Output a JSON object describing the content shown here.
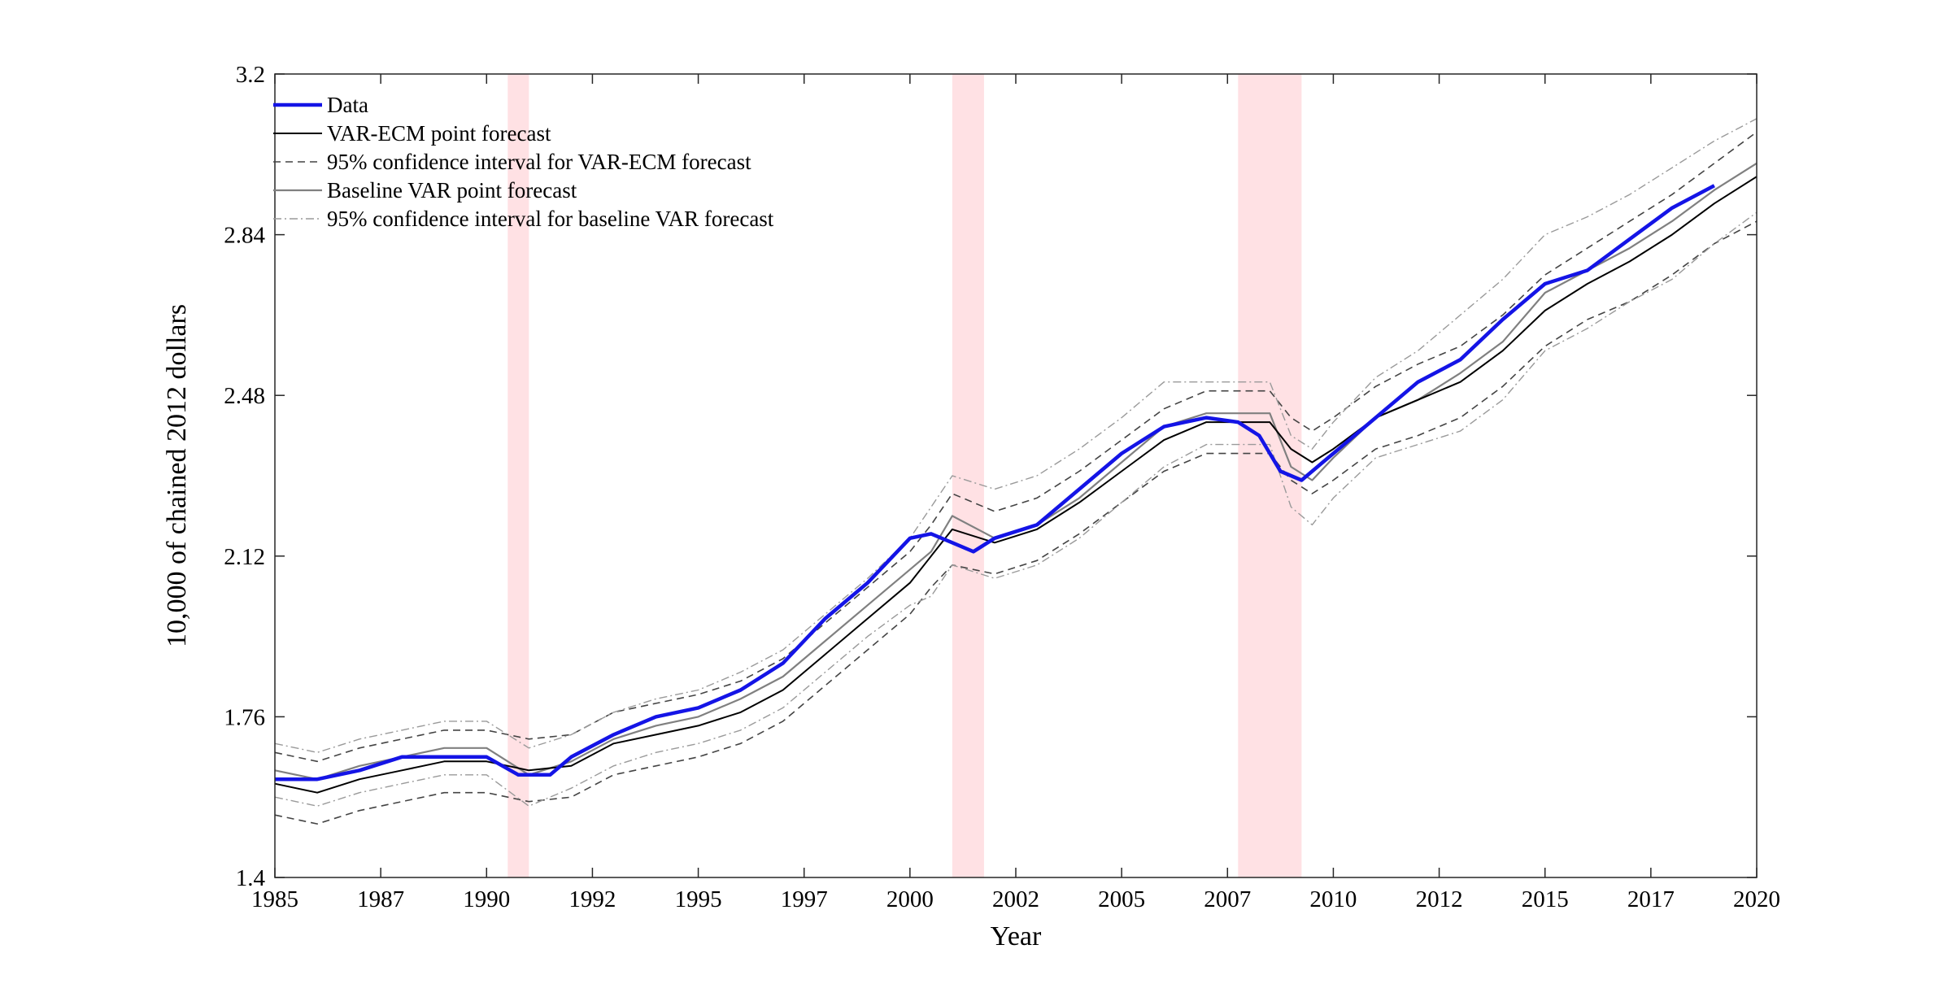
{
  "chart_data": {
    "type": "line",
    "title": "",
    "xlabel": "Year",
    "ylabel": "10,000 of chained 2012 dollars",
    "xlim": [
      1985,
      2020
    ],
    "ylim": [
      1.4,
      3.2
    ],
    "xticks": [
      "1985",
      "1987",
      "1990",
      "1992",
      "1995",
      "1997",
      "2000",
      "2002",
      "2005",
      "2007",
      "2010",
      "2012",
      "2015",
      "2017",
      "2020"
    ],
    "yticks": [
      "1.4",
      "1.76",
      "2.12",
      "2.48",
      "2.84",
      "3.2"
    ],
    "grid": false,
    "legend_position": "top-left",
    "recessions": [
      [
        1990.5,
        1991.0
      ],
      [
        2001.0,
        2001.75
      ],
      [
        2007.75,
        2009.25
      ]
    ],
    "colors": {
      "data": "#1414e6",
      "var_ecm": "#000000",
      "var_ecm_ci": "#444444",
      "baseline": "#808080",
      "baseline_ci": "#9a9a9a",
      "recession": "#ffe1e4"
    },
    "series": [
      {
        "name": "Data",
        "x": [
          1985,
          1986,
          1987,
          1988,
          1989,
          1990,
          1990.75,
          1991.5,
          1992,
          1993,
          1994,
          1995,
          1996,
          1997,
          1998,
          1999,
          2000,
          2000.5,
          2001,
          2001.5,
          2002,
          2003,
          2004,
          2005,
          2006,
          2007,
          2007.75,
          2008.25,
          2008.75,
          2009.25,
          2009.75,
          2010,
          2011,
          2012,
          2013,
          2014,
          2015,
          2016,
          2017,
          2018,
          2019
        ],
        "values": [
          1.62,
          1.62,
          1.64,
          1.67,
          1.67,
          1.67,
          1.63,
          1.63,
          1.67,
          1.72,
          1.76,
          1.78,
          1.82,
          1.88,
          1.98,
          2.06,
          2.16,
          2.17,
          2.15,
          2.13,
          2.16,
          2.19,
          2.27,
          2.35,
          2.41,
          2.43,
          2.42,
          2.39,
          2.31,
          2.29,
          2.33,
          2.35,
          2.43,
          2.51,
          2.56,
          2.65,
          2.73,
          2.76,
          2.83,
          2.9,
          2.95
        ]
      },
      {
        "name": "VAR-ECM point forecast",
        "x": [
          1985,
          1986,
          1987,
          1988,
          1989,
          1990,
          1991,
          1992,
          1993,
          1994,
          1995,
          1996,
          1997,
          1998,
          1999,
          2000,
          2000.5,
          2001,
          2002,
          2003,
          2004,
          2005,
          2006,
          2007,
          2008,
          2008.5,
          2009,
          2009.5,
          2010,
          2011,
          2012,
          2013,
          2014,
          2015,
          2016,
          2017,
          2018,
          2019,
          2020
        ],
        "values": [
          1.61,
          1.59,
          1.62,
          1.64,
          1.66,
          1.66,
          1.64,
          1.65,
          1.7,
          1.72,
          1.74,
          1.77,
          1.82,
          1.9,
          1.98,
          2.06,
          2.12,
          2.18,
          2.15,
          2.18,
          2.24,
          2.31,
          2.38,
          2.42,
          2.42,
          2.42,
          2.36,
          2.33,
          2.36,
          2.43,
          2.47,
          2.51,
          2.58,
          2.67,
          2.73,
          2.78,
          2.84,
          2.91,
          2.97
        ]
      },
      {
        "name": "95% confidence interval for VAR-ECM forecast",
        "x": [
          1985,
          1986,
          1987,
          1988,
          1989,
          1990,
          1991,
          1992,
          1993,
          1994,
          1995,
          1996,
          1997,
          1998,
          1999,
          2000,
          2000.5,
          2001,
          2002,
          2003,
          2004,
          2005,
          2006,
          2007,
          2008,
          2008.5,
          2009,
          2009.5,
          2010,
          2011,
          2012,
          2013,
          2014,
          2015,
          2016,
          2017,
          2018,
          2019,
          2020
        ],
        "values": [
          1.68,
          1.66,
          1.69,
          1.71,
          1.73,
          1.73,
          1.71,
          1.72,
          1.77,
          1.79,
          1.81,
          1.84,
          1.89,
          1.97,
          2.05,
          2.13,
          2.19,
          2.26,
          2.22,
          2.25,
          2.31,
          2.38,
          2.45,
          2.49,
          2.49,
          2.49,
          2.43,
          2.4,
          2.43,
          2.5,
          2.55,
          2.59,
          2.66,
          2.75,
          2.81,
          2.87,
          2.93,
          3.0,
          3.07
        ]
      },
      {
        "name": "95% confidence interval for VAR-ECM forecast",
        "x": [
          1985,
          1986,
          1987,
          1988,
          1989,
          1990,
          1991,
          1992,
          1993,
          1994,
          1995,
          1996,
          1997,
          1998,
          1999,
          2000,
          2000.5,
          2001,
          2002,
          2003,
          2004,
          2005,
          2006,
          2007,
          2008,
          2008.5,
          2009,
          2009.5,
          2010,
          2011,
          2012,
          2013,
          2014,
          2015,
          2016,
          2017,
          2018,
          2019,
          2020
        ],
        "values": [
          1.54,
          1.52,
          1.55,
          1.57,
          1.59,
          1.59,
          1.57,
          1.58,
          1.63,
          1.65,
          1.67,
          1.7,
          1.75,
          1.83,
          1.91,
          1.99,
          2.05,
          2.1,
          2.08,
          2.11,
          2.17,
          2.24,
          2.31,
          2.35,
          2.35,
          2.35,
          2.29,
          2.26,
          2.29,
          2.36,
          2.39,
          2.43,
          2.5,
          2.59,
          2.65,
          2.69,
          2.75,
          2.82,
          2.87
        ]
      },
      {
        "name": "Baseline VAR point forecast",
        "x": [
          1985,
          1986,
          1987,
          1988,
          1989,
          1990,
          1991,
          1992,
          1993,
          1994,
          1995,
          1996,
          1997,
          1998,
          1999,
          2000,
          2000.5,
          2001,
          2002,
          2003,
          2004,
          2005,
          2006,
          2007,
          2008,
          2008.5,
          2009,
          2009.5,
          2010,
          2011,
          2012,
          2013,
          2014,
          2015,
          2016,
          2017,
          2018,
          2019,
          2020
        ],
        "values": [
          1.64,
          1.62,
          1.65,
          1.67,
          1.69,
          1.69,
          1.63,
          1.66,
          1.71,
          1.74,
          1.76,
          1.8,
          1.85,
          1.93,
          2.01,
          2.09,
          2.13,
          2.21,
          2.16,
          2.19,
          2.25,
          2.33,
          2.41,
          2.44,
          2.44,
          2.44,
          2.32,
          2.29,
          2.34,
          2.43,
          2.47,
          2.53,
          2.6,
          2.71,
          2.76,
          2.81,
          2.87,
          2.94,
          3.0
        ]
      },
      {
        "name": "95% confidence interval for baseline VAR forecast",
        "x": [
          1985,
          1986,
          1987,
          1988,
          1989,
          1990,
          1991,
          1992,
          1993,
          1994,
          1995,
          1996,
          1997,
          1998,
          1999,
          2000,
          2000.5,
          2001,
          2002,
          2003,
          2004,
          2005,
          2006,
          2007,
          2008,
          2008.5,
          2009,
          2009.5,
          2010,
          2011,
          2012,
          2013,
          2014,
          2015,
          2016,
          2017,
          2018,
          2019,
          2020
        ],
        "values": [
          1.7,
          1.68,
          1.71,
          1.73,
          1.75,
          1.75,
          1.69,
          1.72,
          1.77,
          1.8,
          1.82,
          1.86,
          1.91,
          1.99,
          2.07,
          2.16,
          2.23,
          2.3,
          2.27,
          2.3,
          2.36,
          2.43,
          2.51,
          2.51,
          2.51,
          2.51,
          2.39,
          2.36,
          2.42,
          2.52,
          2.58,
          2.66,
          2.74,
          2.84,
          2.88,
          2.93,
          2.99,
          3.05,
          3.1
        ]
      },
      {
        "name": "95% confidence interval for baseline VAR forecast",
        "x": [
          1985,
          1986,
          1987,
          1988,
          1989,
          1990,
          1991,
          1992,
          1993,
          1994,
          1995,
          1996,
          1997,
          1998,
          1999,
          2000,
          2000.5,
          2001,
          2002,
          2003,
          2004,
          2005,
          2006,
          2007,
          2008,
          2008.5,
          2009,
          2009.5,
          2010,
          2011,
          2012,
          2013,
          2014,
          2015,
          2016,
          2017,
          2018,
          2019,
          2020
        ],
        "values": [
          1.58,
          1.56,
          1.59,
          1.61,
          1.63,
          1.63,
          1.56,
          1.6,
          1.65,
          1.68,
          1.7,
          1.73,
          1.78,
          1.86,
          1.94,
          2.01,
          2.03,
          2.1,
          2.07,
          2.1,
          2.16,
          2.24,
          2.32,
          2.37,
          2.37,
          2.37,
          2.23,
          2.19,
          2.25,
          2.34,
          2.37,
          2.4,
          2.47,
          2.58,
          2.63,
          2.69,
          2.74,
          2.82,
          2.89
        ]
      }
    ],
    "legend": [
      {
        "label": "Data",
        "style": "data"
      },
      {
        "label": "VAR-ECM point forecast",
        "style": "var_ecm"
      },
      {
        "label": "95% confidence interval for VAR-ECM forecast",
        "style": "var_ecm_ci"
      },
      {
        "label": "Baseline VAR point forecast",
        "style": "baseline"
      },
      {
        "label": "95% confidence interval for baseline VAR forecast",
        "style": "baseline_ci"
      }
    ]
  }
}
